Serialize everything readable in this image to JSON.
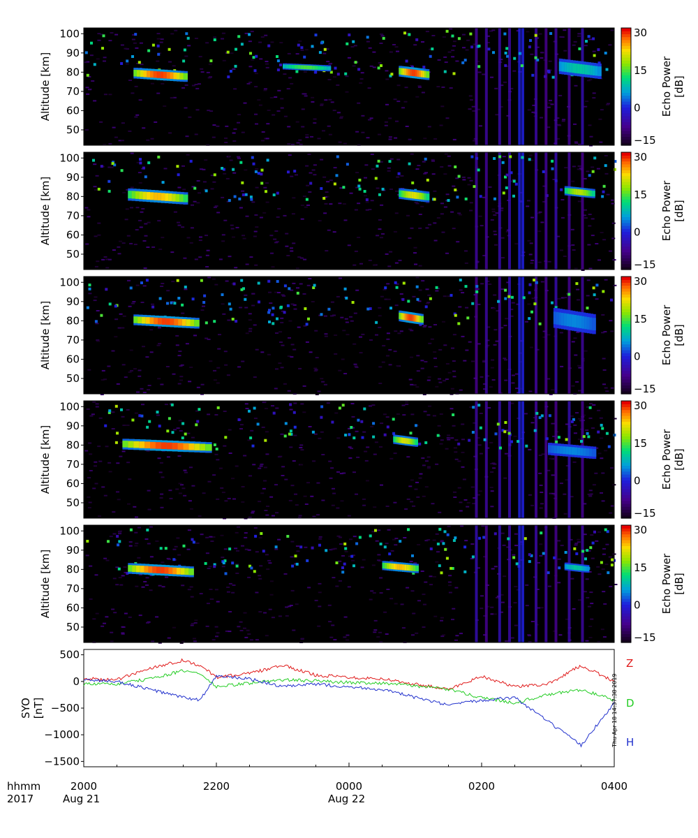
{
  "chart_data": [
    {
      "type": "heatmap",
      "ylabel": "Altitude [km]",
      "ylim": [
        42,
        103
      ],
      "yticks": [
        "100",
        "90",
        "80",
        "70",
        "60",
        "50"
      ],
      "colorbar": {
        "label_top": "Echo Power",
        "label_bottom": "[dB]",
        "range": [
          -15,
          32
        ],
        "ticks": [
          "30",
          "15",
          "0",
          "-15"
        ]
      },
      "echo_layers": [
        {
          "start": "2045",
          "end": "2130",
          "alt_km": [
            76,
            83
          ],
          "peak_db": 30
        },
        {
          "start": "2300",
          "end": "2340",
          "alt_km": [
            81,
            85
          ],
          "peak_db": 15
        },
        {
          "start": "0045",
          "end": "0110",
          "alt_km": [
            77,
            84
          ],
          "peak_db": 30
        },
        {
          "start": "0310",
          "end": "0345",
          "alt_km": [
            78,
            88
          ],
          "peak_db": 10
        }
      ]
    },
    {
      "type": "heatmap",
      "ylabel": "Altitude [km]",
      "ylim": [
        42,
        103
      ],
      "yticks": [
        "100",
        "90",
        "80",
        "70",
        "60",
        "50"
      ],
      "colorbar": {
        "label_top": "Echo Power",
        "label_bottom": "[dB]",
        "range": [
          -15,
          32
        ],
        "ticks": [
          "30",
          "15",
          "0",
          "-15"
        ]
      },
      "echo_layers": [
        {
          "start": "2040",
          "end": "2130",
          "alt_km": [
            77,
            85
          ],
          "peak_db": 25
        },
        {
          "start": "0045",
          "end": "0110",
          "alt_km": [
            78,
            85
          ],
          "peak_db": 22
        },
        {
          "start": "0315",
          "end": "0340",
          "alt_km": [
            80,
            86
          ],
          "peak_db": 20
        }
      ]
    },
    {
      "type": "heatmap",
      "ylabel": "Altitude [km]",
      "ylim": [
        42,
        103
      ],
      "yticks": [
        "100",
        "90",
        "80",
        "70",
        "60",
        "50"
      ],
      "colorbar": {
        "label_top": "Echo Power",
        "label_bottom": "[dB]",
        "range": [
          -15,
          32
        ],
        "ticks": [
          "30",
          "15",
          "0",
          "-15"
        ]
      },
      "echo_layers": [
        {
          "start": "2045",
          "end": "2140",
          "alt_km": [
            77,
            84
          ],
          "peak_db": 30
        },
        {
          "start": "0045",
          "end": "0105",
          "alt_km": [
            79,
            86
          ],
          "peak_db": 30
        },
        {
          "start": "0305",
          "end": "0340",
          "alt_km": [
            75,
            88
          ],
          "peak_db": 5
        }
      ]
    },
    {
      "type": "heatmap",
      "ylabel": "Altitude [km]",
      "ylim": [
        42,
        103
      ],
      "yticks": [
        "100",
        "90",
        "80",
        "70",
        "60",
        "50"
      ],
      "colorbar": {
        "label_top": "Echo Power",
        "label_bottom": "[dB]",
        "range": [
          -15,
          32
        ],
        "ticks": [
          "30",
          "15",
          "0",
          "-15"
        ]
      },
      "echo_layers": [
        {
          "start": "2035",
          "end": "2150",
          "alt_km": [
            77,
            84
          ],
          "peak_db": 30
        },
        {
          "start": "0040",
          "end": "0100",
          "alt_km": [
            80,
            86
          ],
          "peak_db": 22
        },
        {
          "start": "0300",
          "end": "0340",
          "alt_km": [
            74,
            82
          ],
          "peak_db": 5
        }
      ]
    },
    {
      "type": "heatmap",
      "ylabel": "Altitude [km]",
      "ylim": [
        42,
        103
      ],
      "yticks": [
        "100",
        "90",
        "80",
        "70",
        "60",
        "50"
      ],
      "colorbar": {
        "label_top": "Echo Power",
        "label_bottom": "[dB]",
        "range": [
          -15,
          32
        ],
        "ticks": [
          "30",
          "15",
          "0",
          "-15"
        ]
      },
      "echo_layers": [
        {
          "start": "2040",
          "end": "2135",
          "alt_km": [
            77,
            84
          ],
          "peak_db": 30
        },
        {
          "start": "0030",
          "end": "0100",
          "alt_km": [
            79,
            85
          ],
          "peak_db": 25
        },
        {
          "start": "0315",
          "end": "0335",
          "alt_km": [
            79,
            84
          ],
          "peak_db": 10
        }
      ]
    },
    {
      "type": "line",
      "ylabel_lines": [
        "SYO",
        "[nT]"
      ],
      "ylim": [
        -1600,
        600
      ],
      "yticks": [
        500,
        0,
        -500,
        -1000,
        -1500
      ],
      "ytick_labels": [
        "500",
        "0",
        "−500",
        "−1000",
        "−1500"
      ],
      "x_hours_from_2000": [
        0,
        0.5,
        1.0,
        1.5,
        1.75,
        2.0,
        2.5,
        3.0,
        3.5,
        4.0,
        4.5,
        5.0,
        5.5,
        6.0,
        6.5,
        7.0,
        7.5,
        8.0
      ],
      "series": [
        {
          "name": "Z",
          "color": "#e01a1a",
          "values": [
            50,
            30,
            250,
            400,
            300,
            80,
            150,
            300,
            120,
            80,
            50,
            -50,
            -150,
            100,
            -100,
            -50,
            300,
            0
          ]
        },
        {
          "name": "D",
          "color": "#22cc22",
          "values": [
            -50,
            -50,
            50,
            200,
            150,
            -100,
            -30,
            30,
            10,
            -20,
            -30,
            -80,
            -150,
            -300,
            -400,
            -250,
            -150,
            -350
          ]
        },
        {
          "name": "H",
          "color": "#1f2fcc",
          "values": [
            30,
            0,
            -150,
            -300,
            -350,
            100,
            50,
            -100,
            -50,
            -100,
            -150,
            -300,
            -450,
            -350,
            -300,
            -750,
            -1200,
            -400
          ]
        }
      ],
      "legend": [
        "Z",
        "D",
        "H"
      ]
    }
  ],
  "x_axis": {
    "ticks": [
      "2000",
      "2200",
      "0000",
      "0200",
      "0400"
    ],
    "header_left": "hhmm",
    "year": "2017",
    "date_labels": [
      "Aug 21",
      "Aug 22"
    ]
  },
  "side_timestamp": "Thu Apr 18 14:37:38 2019"
}
